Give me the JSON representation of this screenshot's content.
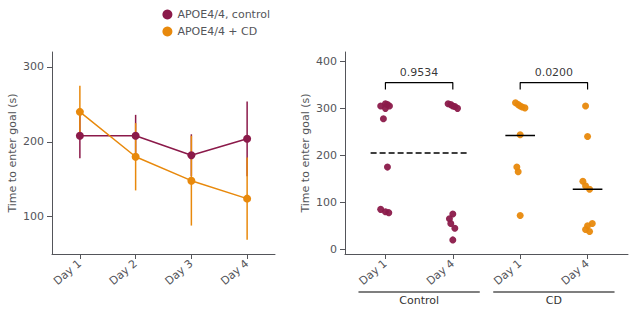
{
  "chart_data": [
    {
      "type": "line",
      "categories": [
        "Day 1",
        "Day 2",
        "Day 3",
        "Day 4"
      ],
      "ylabel": "Time to enter goal (s)",
      "ylim": [
        50,
        320
      ],
      "yticks": [
        100,
        200,
        300
      ],
      "grid": false,
      "legend": "upper right",
      "marker": "circle",
      "series": [
        {
          "name": "APOE4/4, control",
          "color": "#8B1A4A",
          "values": [
            208,
            208,
            182,
            204
          ],
          "errors": [
            30,
            28,
            28,
            50
          ]
        },
        {
          "name": "APOE4/4 + CD",
          "color": "#E8890C",
          "values": [
            240,
            180,
            148,
            124
          ],
          "errors": [
            35,
            45,
            60,
            55
          ]
        }
      ]
    },
    {
      "type": "scatter",
      "xlim": [
        0.4,
        4.6
      ],
      "xticks": [
        {
          "value": 1,
          "label": "Day 1"
        },
        {
          "value": 2,
          "label": "Day 4"
        },
        {
          "value": 3,
          "label": "Day 1"
        },
        {
          "value": 4,
          "label": "Day 4"
        }
      ],
      "ylabel": "Time to enter goal (s)",
      "ylim": [
        -10,
        420
      ],
      "yticks": [
        0,
        100,
        200,
        300,
        400
      ],
      "grid": false,
      "series": [
        {
          "color": "#8B1A4A",
          "x": [
            0.93,
            1.0,
            1.03,
            1.06,
            1.0,
            0.97,
            1.03,
            0.93,
            1.0,
            1.05
          ],
          "values": [
            305,
            310,
            308,
            305,
            300,
            278,
            175,
            85,
            80,
            78
          ]
        },
        {
          "color": "#8B1A4A",
          "x": [
            1.93,
            1.97,
            2.0,
            2.03,
            2.07,
            2.0,
            1.95,
            1.97,
            2.03,
            2.0
          ],
          "values": [
            310,
            308,
            305,
            304,
            300,
            75,
            65,
            55,
            45,
            20
          ]
        },
        {
          "color": "#E8890C",
          "x": [
            2.93,
            2.97,
            3.0,
            3.03,
            3.07,
            3.0,
            2.95,
            2.97,
            3.0
          ],
          "values": [
            312,
            308,
            305,
            303,
            301,
            244,
            175,
            165,
            72
          ]
        },
        {
          "color": "#E8890C",
          "x": [
            3.97,
            4.0,
            3.93,
            3.97,
            4.03,
            4.07,
            4.0,
            3.97,
            4.03
          ],
          "values": [
            305,
            240,
            145,
            135,
            128,
            55,
            50,
            42,
            38
          ]
        }
      ],
      "means": [
        {
          "x": [
            1,
            2
          ],
          "values": [
            205,
            205
          ],
          "line_style": "dashed",
          "color": "#000000"
        },
        {
          "x": [
            3
          ],
          "values": [
            242
          ],
          "line_style": "solid",
          "color": "#000000"
        },
        {
          "x": [
            4
          ],
          "values": [
            128
          ],
          "line_style": "solid",
          "color": "#000000"
        }
      ],
      "annotations": [
        {
          "text": "0.9534",
          "x": [
            1,
            2
          ],
          "y": 355,
          "drop": 15,
          "color": "#000000"
        },
        {
          "text": "0.0200",
          "x": [
            3,
            4
          ],
          "y": 355,
          "drop": 15,
          "color": "#000000"
        }
      ],
      "group_labels": [
        "Control",
        "CD"
      ]
    }
  ]
}
